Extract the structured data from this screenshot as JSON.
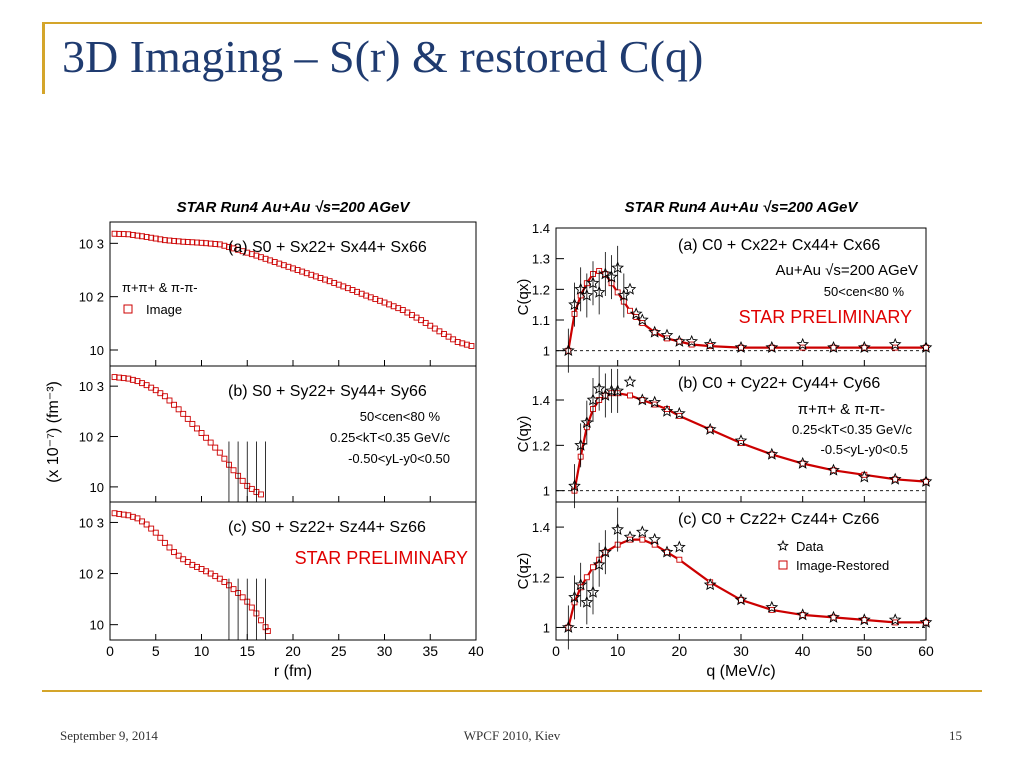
{
  "slide": {
    "title": "3D Imaging – S(r) & restored C(q)",
    "footer_date": "September 9, 2014",
    "footer_center": "WPCF 2010, Kiev",
    "page_number": "15",
    "accent_color": "#d4a52a",
    "title_color": "#1f3b70"
  },
  "chart_data": [
    {
      "type": "scatter",
      "title": "STAR Run4 Au+Au √s=200 AGeV",
      "xlabel": "r (fm)",
      "ylabel": "(x 10⁻⁷) (fm⁻³)",
      "xlim": [
        0,
        40
      ],
      "x_ticks": [
        "0",
        "5",
        "10",
        "15",
        "20",
        "25",
        "30",
        "35",
        "40"
      ],
      "y_scale": "log",
      "y_tick_labels": [
        "10",
        "10 2",
        "10 3"
      ],
      "preliminary_label": "STAR PRELIMINARY",
      "marker_color": "#cc0000",
      "panels": [
        {
          "id": "a",
          "label": "(a) S0 + Sx22+ Sx44+ Sx66",
          "notes": [
            "π+π+ & π-π-"
          ],
          "legend": "Image",
          "log10_ylim": [
            0.7,
            3.4
          ],
          "x": [
            0.5,
            2,
            4,
            6,
            8,
            10,
            12,
            14,
            16,
            18,
            20,
            22,
            24,
            26,
            28,
            30,
            32,
            34,
            36,
            38,
            40
          ],
          "log10_y": [
            3.18,
            3.17,
            3.12,
            3.06,
            3.03,
            3.01,
            2.98,
            2.88,
            2.77,
            2.65,
            2.53,
            2.41,
            2.29,
            2.16,
            2.02,
            1.89,
            1.75,
            1.56,
            1.35,
            1.15,
            1.05
          ]
        },
        {
          "id": "b",
          "label": "(b) S0 + Sy22+ Sy44+ Sy66",
          "notes": [
            "50<cen<80 %",
            "0.25<kT<0.35 GeV/c",
            "-0.50<yL-y0<0.50"
          ],
          "log10_ylim": [
            0.7,
            3.4
          ],
          "x": [
            0.5,
            2,
            3,
            4,
            5,
            6,
            7,
            8,
            9,
            10,
            11,
            12,
            13,
            14,
            15,
            16,
            17
          ],
          "log10_y": [
            3.18,
            3.15,
            3.1,
            3.02,
            2.92,
            2.8,
            2.63,
            2.45,
            2.25,
            2.07,
            1.88,
            1.68,
            1.44,
            1.22,
            1.02,
            0.9,
            0.8
          ]
        },
        {
          "id": "c",
          "label": "(c) S0 + Sz22+ Sz44+ Sz66",
          "notes": [],
          "log10_ylim": [
            0.7,
            3.4
          ],
          "x": [
            0.5,
            2,
            3,
            4,
            5,
            6,
            7,
            8,
            9,
            10,
            11,
            12,
            13,
            14,
            15,
            16,
            17,
            17.5
          ],
          "log10_y": [
            3.18,
            3.14,
            3.08,
            2.96,
            2.8,
            2.6,
            2.42,
            2.28,
            2.17,
            2.09,
            2.0,
            1.9,
            1.77,
            1.62,
            1.45,
            1.22,
            0.95,
            0.8
          ]
        }
      ]
    },
    {
      "type": "scatter",
      "title": "STAR Run4 Au+Au √s=200 AGeV",
      "xlabel": "q (MeV/c)",
      "xlim": [
        0,
        60
      ],
      "x_ticks": [
        "0",
        "10",
        "20",
        "30",
        "40",
        "50",
        "60"
      ],
      "preliminary_label": "STAR PRELIMINARY",
      "legend": [
        {
          "name": "Data",
          "marker": "star",
          "color": "#000000"
        },
        {
          "name": "Image-Restored",
          "marker": "square",
          "color": "#cc0000"
        }
      ],
      "panels": [
        {
          "id": "a",
          "label": "(a) C0 + Cx22+ Cx44+ Cx66",
          "ylabel": "C(qx)",
          "notes": [
            "Au+Au √s=200 AGeV",
            "50<cen<80 %"
          ],
          "ylim": [
            0.95,
            1.4
          ],
          "y_ticks": [
            "1",
            "1.1",
            "1.2",
            "1.3",
            "1.4"
          ],
          "x": [
            2,
            3,
            4,
            5,
            6,
            7,
            8,
            9,
            10,
            11,
            12,
            13,
            14,
            16,
            18,
            20,
            22,
            25,
            30,
            35,
            40,
            45,
            50,
            55,
            60
          ],
          "restored": [
            1.0,
            1.12,
            1.18,
            1.22,
            1.25,
            1.26,
            1.25,
            1.22,
            1.19,
            1.16,
            1.13,
            1.11,
            1.09,
            1.06,
            1.04,
            1.03,
            1.02,
            1.015,
            1.01,
            1.01,
            1.01,
            1.01,
            1.01,
            1.01,
            1.01
          ],
          "data": [
            1.0,
            1.15,
            1.2,
            1.18,
            1.22,
            1.19,
            1.25,
            1.24,
            1.27,
            1.18,
            1.2,
            1.12,
            1.1,
            1.06,
            1.05,
            1.03,
            1.03,
            1.02,
            1.01,
            1.01,
            1.02,
            1.01,
            1.01,
            1.02,
            1.01
          ]
        },
        {
          "id": "b",
          "label": "(b) C0 + Cy22+ Cy44+ Cy66",
          "ylabel": "C(qy)",
          "notes": [
            "π+π+ & π-π-",
            "0.25<kT<0.35 GeV/c",
            "-0.5<yL-y0<0.5"
          ],
          "ylim": [
            0.95,
            1.55
          ],
          "y_ticks": [
            "1",
            "1.2",
            "1.4"
          ],
          "x": [
            3,
            4,
            5,
            6,
            7,
            8,
            9,
            10,
            12,
            14,
            16,
            18,
            20,
            25,
            30,
            35,
            40,
            45,
            50,
            55,
            60
          ],
          "restored": [
            1.0,
            1.15,
            1.28,
            1.36,
            1.4,
            1.42,
            1.43,
            1.43,
            1.42,
            1.4,
            1.38,
            1.36,
            1.33,
            1.27,
            1.21,
            1.16,
            1.12,
            1.09,
            1.07,
            1.05,
            1.04
          ],
          "data": [
            1.02,
            1.2,
            1.3,
            1.4,
            1.45,
            1.42,
            1.44,
            1.44,
            1.48,
            1.4,
            1.39,
            1.35,
            1.34,
            1.27,
            1.22,
            1.16,
            1.12,
            1.09,
            1.06,
            1.05,
            1.04
          ]
        },
        {
          "id": "c",
          "label": "(c) C0 + Cz22+ Cz44+ Cz66",
          "ylabel": "C(qz)",
          "notes": [],
          "ylim": [
            0.95,
            1.5
          ],
          "y_ticks": [
            "1",
            "1.2",
            "1.4"
          ],
          "x": [
            2,
            3,
            4,
            5,
            6,
            7,
            8,
            10,
            12,
            14,
            16,
            18,
            20,
            25,
            30,
            35,
            40,
            45,
            50,
            55,
            60
          ],
          "restored": [
            1.0,
            1.1,
            1.16,
            1.2,
            1.24,
            1.27,
            1.3,
            1.33,
            1.35,
            1.35,
            1.33,
            1.3,
            1.27,
            1.18,
            1.11,
            1.07,
            1.05,
            1.04,
            1.03,
            1.02,
            1.02
          ],
          "data": [
            1.0,
            1.12,
            1.17,
            1.1,
            1.14,
            1.25,
            1.3,
            1.39,
            1.36,
            1.38,
            1.35,
            1.3,
            1.32,
            1.17,
            1.11,
            1.08,
            1.05,
            1.04,
            1.03,
            1.03,
            1.02
          ]
        }
      ]
    }
  ]
}
